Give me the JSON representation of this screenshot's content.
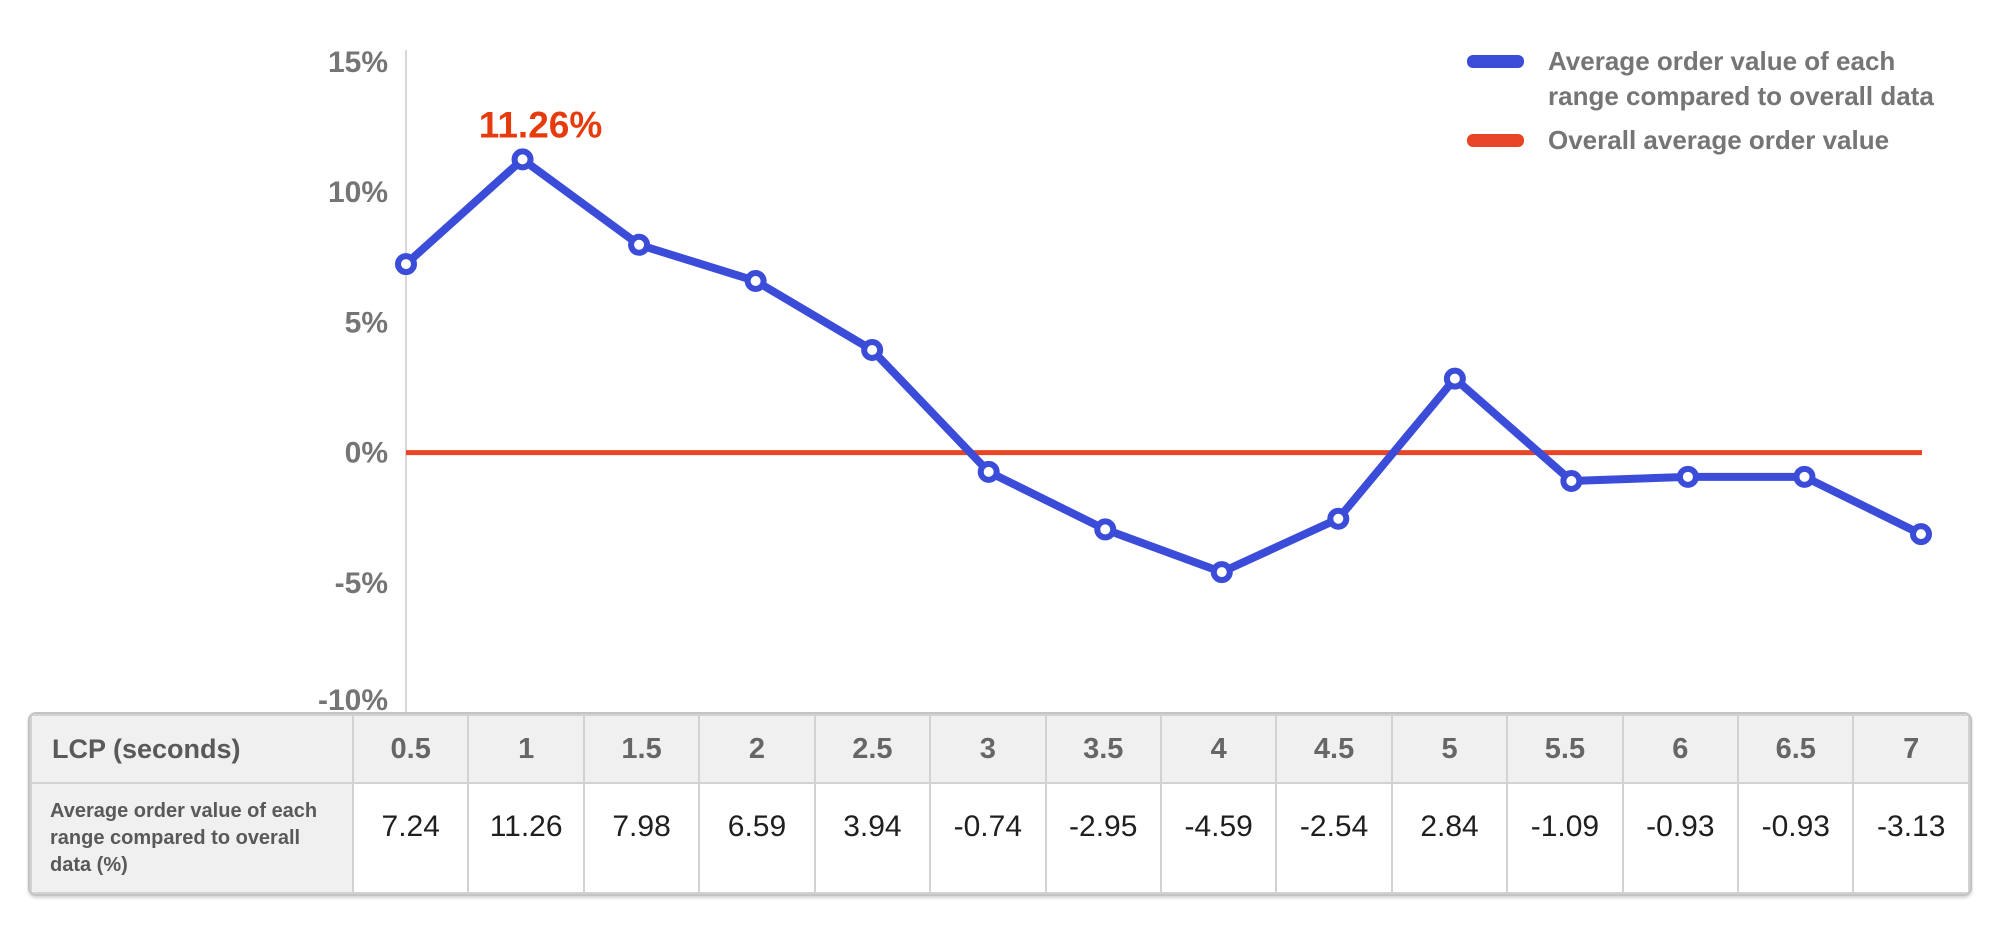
{
  "chart": {
    "colors": {
      "series_blue": "#3b4cd9",
      "overall_red": "#e84426",
      "annotation_red": "#e63c0d",
      "axis_line": "#d8d8d8",
      "tick_label": "#757575"
    },
    "yticks": [
      {
        "value": 15,
        "label": "15%"
      },
      {
        "value": 10,
        "label": "10%"
      },
      {
        "value": 5,
        "label": "5%"
      },
      {
        "value": 0,
        "label": "0%"
      },
      {
        "value": -5,
        "label": "-5%"
      },
      {
        "value": -10,
        "label": "-10%"
      }
    ],
    "annotation": {
      "text": "11.26%",
      "x_index": 1,
      "value": 11.26
    },
    "legend": [
      {
        "swatch_color": "#3b4cd9",
        "lines": [
          "Average order value of each",
          "range compared to overall data"
        ]
      },
      {
        "swatch_color": "#e84426",
        "lines": [
          "Overall average order value"
        ]
      }
    ]
  },
  "chart_data": {
    "type": "line",
    "title": "",
    "xlabel": "LCP (seconds)",
    "ylabel": "",
    "ylim": [
      -10,
      15
    ],
    "grid": false,
    "legend_position": "top-right",
    "categories": [
      "0.5",
      "1",
      "1.5",
      "2",
      "2.5",
      "3",
      "3.5",
      "4",
      "4.5",
      "5",
      "5.5",
      "6",
      "6.5",
      "7"
    ],
    "x": [
      0.5,
      1,
      1.5,
      2,
      2.5,
      3,
      3.5,
      4,
      4.5,
      5,
      5.5,
      6,
      6.5,
      7
    ],
    "series": [
      {
        "name": "Average order value of each range compared to overall data",
        "color": "#3b4cd9",
        "marker": "open-circle",
        "values": [
          7.24,
          11.26,
          7.98,
          6.59,
          3.94,
          -0.74,
          -2.95,
          -4.59,
          -2.54,
          2.84,
          -1.09,
          -0.93,
          -0.93,
          -3.13
        ]
      },
      {
        "name": "Overall average order value",
        "color": "#e84426",
        "marker": "none",
        "values": [
          0,
          0,
          0,
          0,
          0,
          0,
          0,
          0,
          0,
          0,
          0,
          0,
          0,
          0
        ]
      }
    ],
    "annotations": [
      {
        "text": "11.26%",
        "x": 1,
        "y": 11.26,
        "color": "#e63c0d"
      }
    ]
  },
  "table": {
    "header_label": "LCP (seconds)",
    "row_label": "Average order value of each range compared to overall data (%)",
    "columns": [
      "0.5",
      "1",
      "1.5",
      "2",
      "2.5",
      "3",
      "3.5",
      "4",
      "4.5",
      "5",
      "5.5",
      "6",
      "6.5",
      "7"
    ],
    "values": [
      "7.24",
      "11.26",
      "7.98",
      "6.59",
      "3.94",
      "-0.74",
      "-2.95",
      "-4.59",
      "-2.54",
      "2.84",
      "-1.09",
      "-0.93",
      "-0.93",
      "-3.13"
    ]
  }
}
